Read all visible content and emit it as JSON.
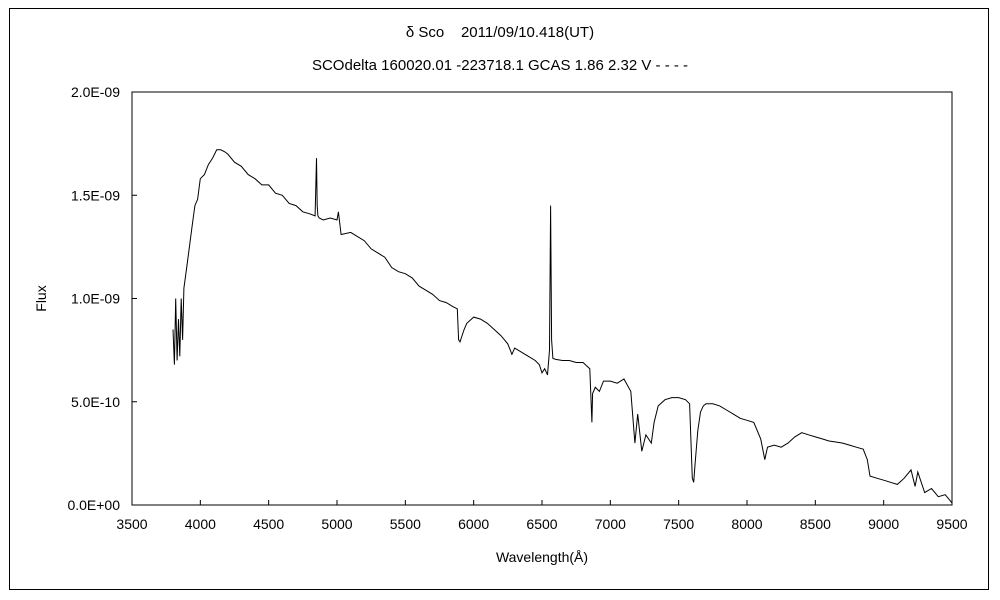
{
  "chart_data": {
    "type": "line",
    "title": "δ Sco    2011/09/10.418(UT)",
    "subtitle": "SCOdelta 160020.01 -223718.1 GCAS 1.86 2.32 V - - - -",
    "xlabel": "Wavelength(Å)",
    "ylabel": "Flux",
    "xlim": [
      3500,
      9500
    ],
    "ylim": [
      0,
      2e-09
    ],
    "x_ticks": [
      3500,
      4000,
      4500,
      5000,
      5500,
      6000,
      6500,
      7000,
      7500,
      8000,
      8500,
      9000,
      9500
    ],
    "x_tick_labels": [
      "3500",
      "4000",
      "4500",
      "5000",
      "5500",
      "6000",
      "6500",
      "7000",
      "7500",
      "8000",
      "8500",
      "9000",
      "9500"
    ],
    "y_ticks": [
      0,
      5e-10,
      1e-09,
      1.5e-09,
      2e-09
    ],
    "y_tick_labels": [
      "0.0E+00",
      "5.0E-10",
      "1.0E-09",
      "1.5E-09",
      "2.0E-09"
    ],
    "grid": false,
    "series": [
      {
        "color": "#000000",
        "x": [
          3800,
          3810,
          3820,
          3830,
          3840,
          3850,
          3860,
          3870,
          3880,
          3890,
          3900,
          3920,
          3940,
          3960,
          3980,
          4000,
          4030,
          4060,
          4090,
          4120,
          4150,
          4180,
          4200,
          4250,
          4300,
          4350,
          4400,
          4450,
          4500,
          4550,
          4600,
          4650,
          4700,
          4750,
          4800,
          4840,
          4850,
          4855,
          4860,
          4870,
          4900,
          4950,
          5000,
          5010,
          5030,
          5100,
          5150,
          5200,
          5250,
          5300,
          5350,
          5400,
          5450,
          5500,
          5550,
          5600,
          5650,
          5700,
          5750,
          5800,
          5850,
          5880,
          5890,
          5900,
          5930,
          5950,
          6000,
          6050,
          6100,
          6150,
          6200,
          6250,
          6280,
          6300,
          6350,
          6400,
          6450,
          6480,
          6500,
          6520,
          6540,
          6555,
          6563,
          6570,
          6580,
          6600,
          6650,
          6700,
          6750,
          6800,
          6850,
          6865,
          6870,
          6890,
          6920,
          6950,
          7000,
          7050,
          7100,
          7150,
          7180,
          7200,
          7230,
          7260,
          7300,
          7320,
          7350,
          7400,
          7450,
          7500,
          7550,
          7580,
          7600,
          7610,
          7620,
          7640,
          7660,
          7680,
          7700,
          7750,
          7800,
          7850,
          7900,
          7950,
          8000,
          8050,
          8100,
          8130,
          8150,
          8200,
          8250,
          8300,
          8350,
          8400,
          8450,
          8500,
          8550,
          8600,
          8650,
          8700,
          8750,
          8800,
          8850,
          8880,
          8900,
          8950,
          9000,
          9050,
          9100,
          9150,
          9200,
          9230,
          9250,
          9300,
          9350,
          9400,
          9450,
          9500
        ],
        "y": [
          8.5e-10,
          6.8e-10,
          1e-09,
          7e-10,
          9e-10,
          7.2e-10,
          1e-09,
          8e-10,
          1.05e-09,
          1.1e-09,
          1.15e-09,
          1.25e-09,
          1.35e-09,
          1.45e-09,
          1.48e-09,
          1.58e-09,
          1.6e-09,
          1.65e-09,
          1.68e-09,
          1.72e-09,
          1.72e-09,
          1.71e-09,
          1.7e-09,
          1.66e-09,
          1.64e-09,
          1.6e-09,
          1.58e-09,
          1.55e-09,
          1.55e-09,
          1.51e-09,
          1.5e-09,
          1.46e-09,
          1.45e-09,
          1.42e-09,
          1.41e-09,
          1.4e-09,
          1.68e-09,
          1.45e-09,
          1.4e-09,
          1.39e-09,
          1.38e-09,
          1.39e-09,
          1.38e-09,
          1.42e-09,
          1.31e-09,
          1.32e-09,
          1.3e-09,
          1.28e-09,
          1.24e-09,
          1.22e-09,
          1.2e-09,
          1.15e-09,
          1.13e-09,
          1.12e-09,
          1.1e-09,
          1.06e-09,
          1.04e-09,
          1.02e-09,
          9.9e-10,
          9.8e-10,
          9.6e-10,
          9.5e-10,
          8e-10,
          7.9e-10,
          8.5e-10,
          8.8e-10,
          9.1e-10,
          9e-10,
          8.8e-10,
          8.5e-10,
          8.2e-10,
          7.8e-10,
          7.3e-10,
          7.6e-10,
          7.4e-10,
          7.2e-10,
          7e-10,
          6.8e-10,
          6.4e-10,
          6.6e-10,
          6.3e-10,
          7.5e-10,
          1.45e-09,
          8e-10,
          7.1e-10,
          7.05e-10,
          7e-10,
          7e-10,
          6.9e-10,
          6.9e-10,
          6.6e-10,
          4e-10,
          5.4e-10,
          5.7e-10,
          5.5e-10,
          6e-10,
          6e-10,
          5.9e-10,
          6.1e-10,
          5.5e-10,
          3e-10,
          4.4e-10,
          2.6e-10,
          3.4e-10,
          3e-10,
          4e-10,
          4.8e-10,
          5.1e-10,
          5.2e-10,
          5.2e-10,
          5.1e-10,
          4.9e-10,
          1.3e-10,
          1.1e-10,
          2e-10,
          3.6e-10,
          4.5e-10,
          4.8e-10,
          4.9e-10,
          4.9e-10,
          4.8e-10,
          4.6e-10,
          4.4e-10,
          4.2e-10,
          4.1e-10,
          4e-10,
          3.2e-10,
          2.2e-10,
          2.8e-10,
          2.9e-10,
          2.8e-10,
          3e-10,
          3.3e-10,
          3.5e-10,
          3.4e-10,
          3.3e-10,
          3.2e-10,
          3.1e-10,
          3.05e-10,
          3e-10,
          2.9e-10,
          2.8e-10,
          2.7e-10,
          2.2e-10,
          1.4e-10,
          1.3e-10,
          1.2e-10,
          1.1e-10,
          1e-10,
          1.3e-10,
          1.7e-10,
          9e-11,
          1.6e-10,
          6e-11,
          8e-11,
          4e-11,
          5e-11,
          1e-11
        ]
      }
    ]
  }
}
